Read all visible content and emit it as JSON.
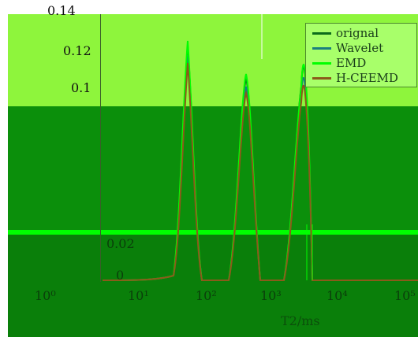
{
  "chart_data": {
    "type": "line",
    "xlabel": "T2/ms",
    "ylabel": "",
    "x_ticks": [
      "10⁰",
      "10¹",
      "10²",
      "10³",
      "10⁴",
      "10⁵"
    ],
    "y_ticks": [
      "0.14",
      "0.12",
      "0.1",
      "0.02",
      "0"
    ],
    "series": [
      {
        "name": "orignal",
        "color": "#0b6b1a"
      },
      {
        "name": "Wavelet",
        "color": "#1a7f7f"
      },
      {
        "name": "EMD",
        "color": "#00ff00"
      },
      {
        "name": "H-CEEMD",
        "color": "#8b5a1a"
      }
    ]
  }
}
